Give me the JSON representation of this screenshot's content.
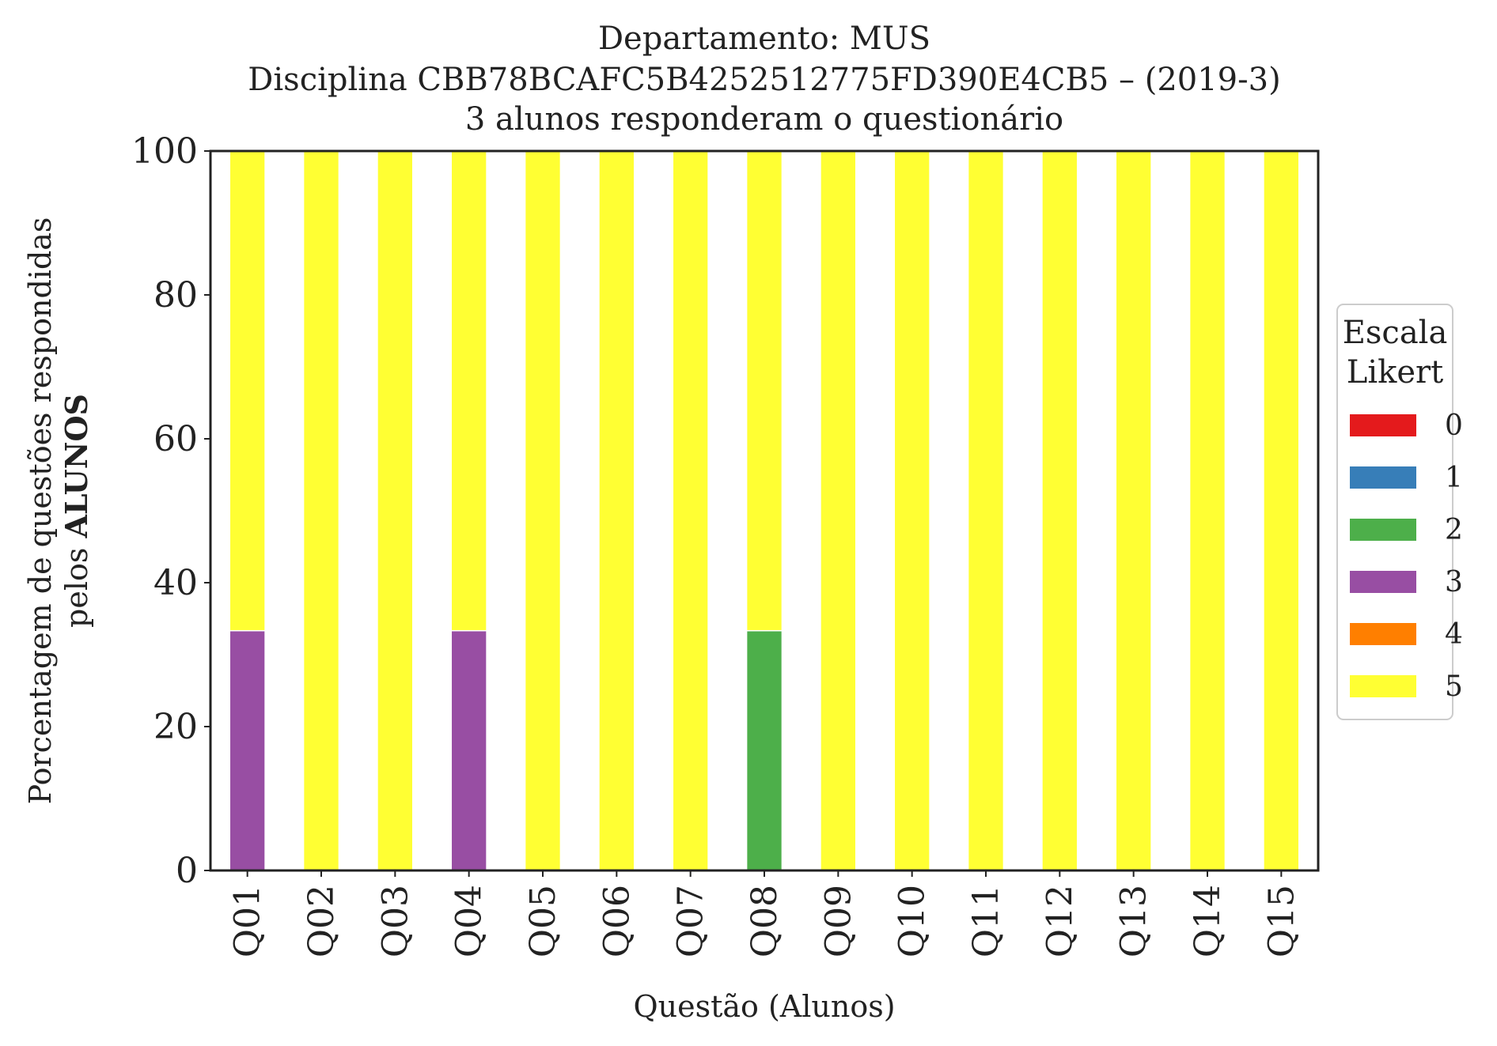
{
  "chart_data": {
    "type": "bar",
    "stacked": true,
    "title": [
      "Departamento: MUS",
      "Disciplina CBB78BCAFC5B4252512775FD390E4CB5 – (2019-3)",
      "3 alunos responderam o questionário"
    ],
    "xlabel": "Questão (Alunos)",
    "ylabel_line1": "Porcentagem de questões respondidas",
    "ylabel_line2_prefix": "pelos ",
    "ylabel_line2_bold": "ALUNOS",
    "ylim": [
      0,
      100
    ],
    "yticks": [
      0,
      20,
      40,
      60,
      80,
      100
    ],
    "grid": false,
    "categories": [
      "Q01",
      "Q02",
      "Q03",
      "Q04",
      "Q05",
      "Q06",
      "Q07",
      "Q08",
      "Q09",
      "Q10",
      "Q11",
      "Q12",
      "Q13",
      "Q14",
      "Q15"
    ],
    "legend": {
      "title": [
        "Escala",
        "Likert"
      ],
      "placement": "center-right-outside"
    },
    "series": [
      {
        "name": "0",
        "color": "#e41a1c",
        "values": [
          0,
          0,
          0,
          0,
          0,
          0,
          0,
          0,
          0,
          0,
          0,
          0,
          0,
          0,
          0
        ]
      },
      {
        "name": "1",
        "color": "#377eb8",
        "values": [
          0,
          0,
          0,
          0,
          0,
          0,
          0,
          0,
          0,
          0,
          0,
          0,
          0,
          0,
          0
        ]
      },
      {
        "name": "2",
        "color": "#4daf4a",
        "values": [
          0,
          0,
          0,
          0,
          0,
          0,
          0,
          33.33,
          0,
          0,
          0,
          0,
          0,
          0,
          0
        ]
      },
      {
        "name": "3",
        "color": "#984ea3",
        "values": [
          33.33,
          0,
          0,
          33.33,
          0,
          0,
          0,
          0,
          0,
          0,
          0,
          0,
          0,
          0,
          0
        ]
      },
      {
        "name": "4",
        "color": "#ff7f00",
        "values": [
          0,
          0,
          0,
          0,
          0,
          0,
          0,
          0,
          0,
          0,
          0,
          0,
          0,
          0,
          0
        ]
      },
      {
        "name": "5",
        "color": "#ffff33",
        "values": [
          66.67,
          100,
          100,
          66.67,
          100,
          100,
          100,
          66.67,
          100,
          100,
          100,
          100,
          100,
          100,
          100
        ]
      }
    ]
  }
}
